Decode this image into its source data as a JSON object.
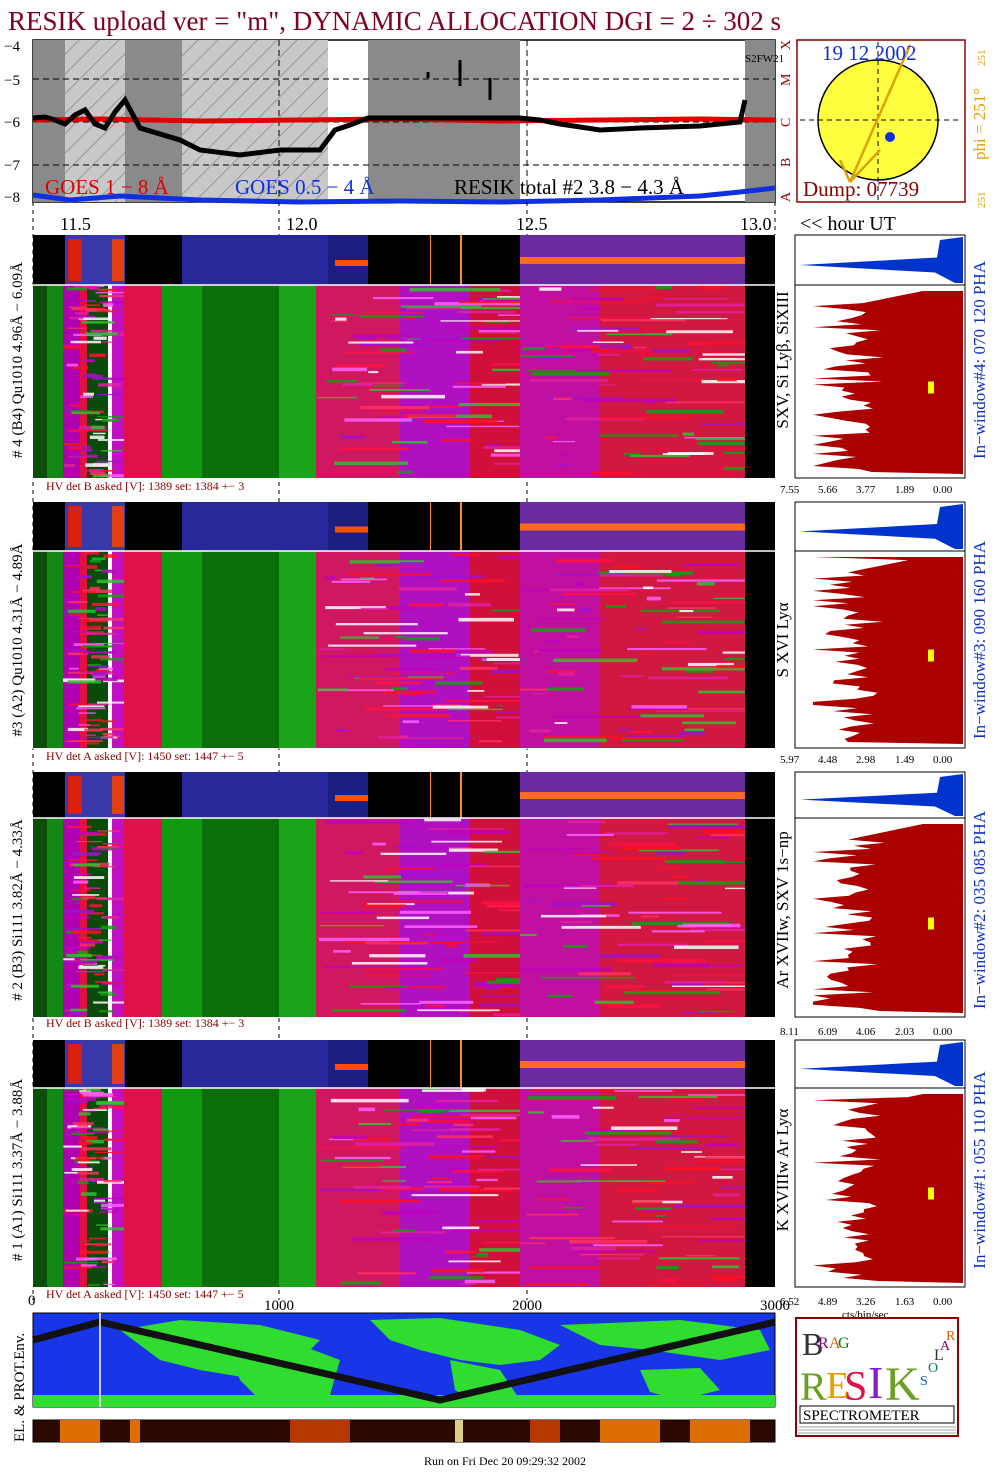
{
  "title": "RESIK upload ver = \"m\", DYNAMIC ALLOCATION  DGI =   2 ÷ 302 s",
  "top_plot": {
    "yticks": [
      "−4",
      "−5",
      "−6",
      "−7",
      "−8"
    ],
    "class_labels": [
      "A",
      "B",
      "C",
      "M",
      "X"
    ],
    "corner_text": "S2FW21",
    "legend": {
      "goes_long": "GOES 1 − 8 Å",
      "goes_short": "GOES 0.5 − 4 Å",
      "resik": "RESIK total #2  3.8 − 4.3 Å"
    },
    "xticks": [
      "11.5",
      "12.0",
      "12.5",
      "13.0"
    ],
    "xunit": "<< hour UT"
  },
  "sun_panel": {
    "date": "19 12 2002",
    "dump": "Dump: 07739",
    "phi_label": "phi = 251°",
    "phi_min": "251",
    "phi_max": "251"
  },
  "channels": [
    {
      "id": 4,
      "left_label": "# 4 (B4) Qu1010 4.96Å − 6.09Å",
      "lines": "SXV, Si Lyβ, SiXIII",
      "window": "In−window#4:  070 120 PHA",
      "hv": "HV det B asked [V]:  1389 set:  1384 +−   3",
      "pha_ticks": [
        "7.55",
        "5.66",
        "3.77",
        "1.89",
        "0.00"
      ]
    },
    {
      "id": 3,
      "left_label": "#3 (A2) Qu1010  4.31Å − 4.89Å",
      "lines": "S XVI Lyα",
      "window": "In−window#3:  090 160 PHA",
      "hv": "HV det A asked [V]:  1450 set:  1447 +−   5",
      "pha_ticks": [
        "5.97",
        "4.48",
        "2.98",
        "1.49",
        "0.00"
      ]
    },
    {
      "id": 2,
      "left_label": "# 2 (B3) Si111  3.82Å − 4.33Å",
      "lines": "Ar XVIIw,  SXV 1s−np",
      "window": "In−window#2:  035 085 PHA",
      "hv": "HV det B asked [V]:  1389 set:  1384 +−   3",
      "pha_ticks": [
        "8.11",
        "6.09",
        "4.06",
        "2.03",
        "0.00"
      ]
    },
    {
      "id": 1,
      "left_label": "# 1 (A1) Si111  3.37Å − 3.88Å",
      "lines": "K XVIIIw  Ar Lyα",
      "window": "In−window#1:  055 110 PHA",
      "hv": "HV det A asked [V]:  1450 set:  1447 +−   5",
      "pha_ticks": [
        "6.52",
        "4.89",
        "3.26",
        "1.63",
        "0.00"
      ]
    }
  ],
  "bottom_axis": {
    "ticks": [
      "0",
      "1000",
      "2000",
      "3000"
    ],
    "unit": "cts/bin/sec"
  },
  "env_label": "EL. & PROT.Env.",
  "logo": {
    "letters": [
      "B",
      "R",
      "A",
      "G",
      "R",
      "E",
      "S",
      "I",
      "K",
      "S",
      "O",
      "L",
      "A",
      "R"
    ],
    "word": "SPECTROMETER"
  },
  "footer": "Run on Fri Dec 20 09:29:32 2002",
  "colors": {
    "title": "#800020",
    "goes_long": "#e00000",
    "goes_short": "#1030e0",
    "pha_fill": "#aa0000",
    "pha_top": "#0033cc",
    "panel_green": "#0a6e0a",
    "panel_magenta": "#c000c0",
    "panel_red": "#ff1040",
    "sun": "#ffff40"
  }
}
